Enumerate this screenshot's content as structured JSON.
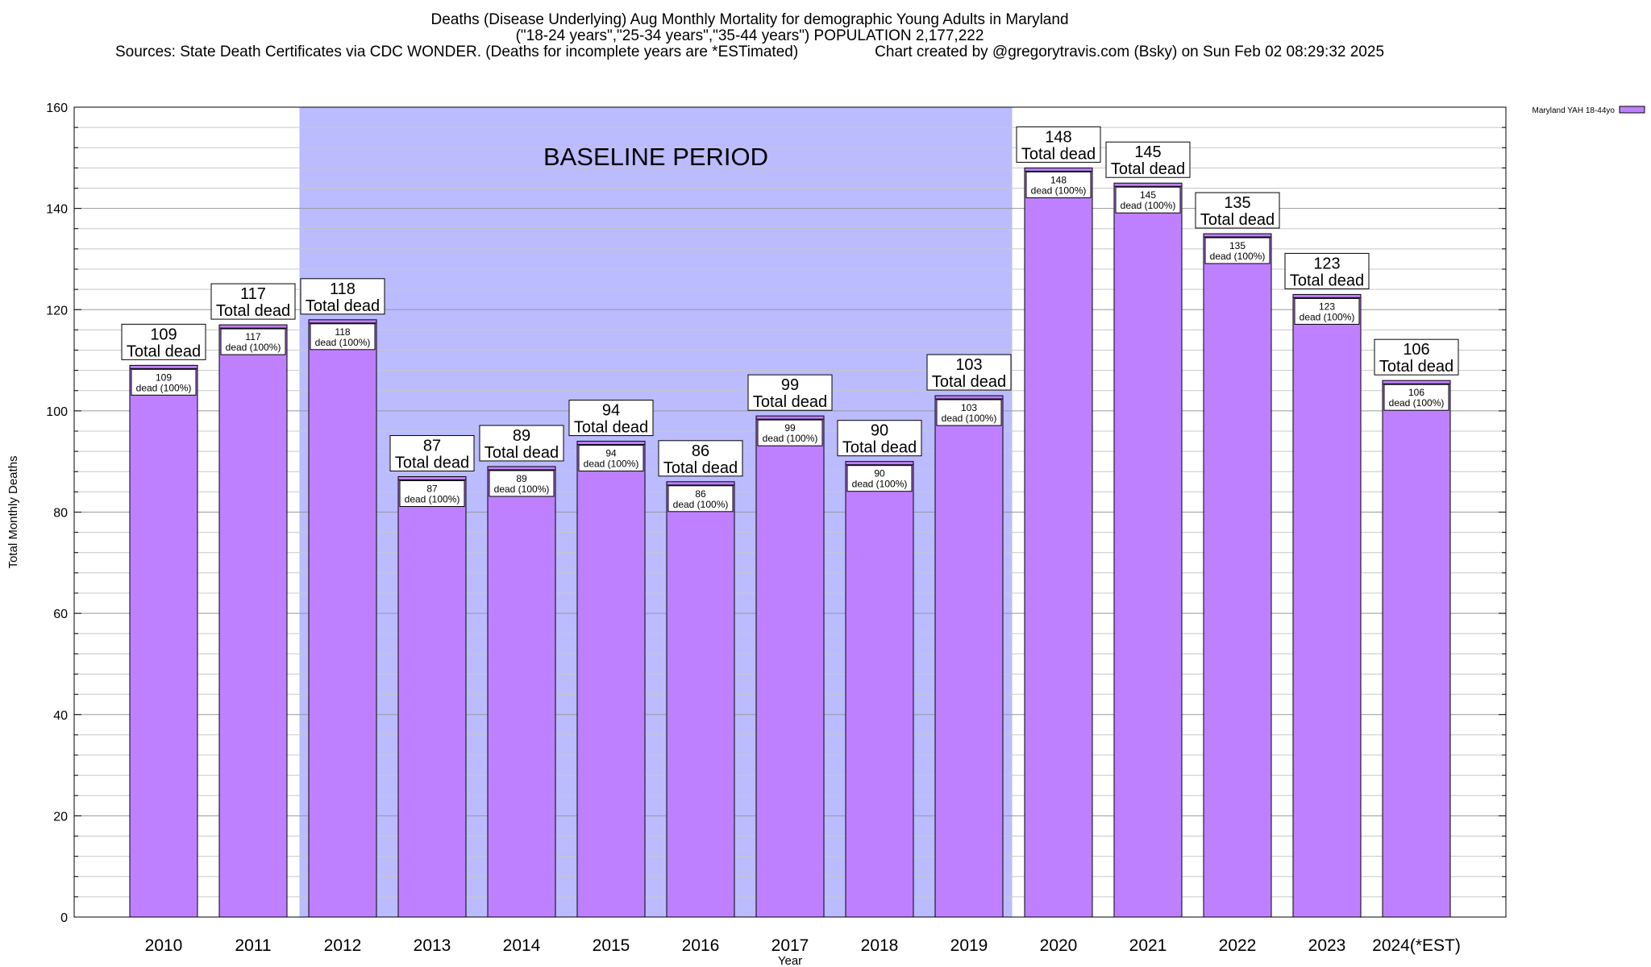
{
  "header": {
    "line1": "Deaths (Disease Underlying) Aug Monthly Mortality for demographic Young Adults in Maryland",
    "line2": "(\"18-24 years\",\"25-34 years\",\"35-44 years\") POPULATION 2,177,222",
    "sources": "Sources: State Death Certificates via CDC WONDER. (Deaths for incomplete years are *ESTimated)",
    "credit": "Chart created by @gregorytravis.com (Bsky) on Sun Feb 02 08:29:32 2025"
  },
  "chart_data": {
    "type": "bar",
    "title": "Deaths (Disease Underlying) Aug Monthly Mortality for demographic Young Adults in Maryland",
    "xlabel": "Year",
    "ylabel": "Total Monthly Deaths",
    "ylim": [
      0,
      160
    ],
    "yticks": [
      0,
      20,
      40,
      60,
      80,
      100,
      120,
      140,
      160
    ],
    "grid": true,
    "legend_position": "top-right",
    "categories": [
      "2010",
      "2011",
      "2012",
      "2013",
      "2014",
      "2015",
      "2016",
      "2017",
      "2018",
      "2019",
      "2020",
      "2021",
      "2022",
      "2023",
      "2024(*EST)"
    ],
    "series": [
      {
        "name": "Maryland YAH 18-44yo",
        "color": "#bf80ff",
        "values": [
          109,
          117,
          118,
          87,
          89,
          94,
          86,
          99,
          90,
          103,
          148,
          145,
          135,
          123,
          106
        ]
      }
    ],
    "total_label_suffix": "Total dead",
    "inner_label_suffix": "dead (100%)",
    "baseline_period": {
      "label": "BASELINE PERIOD",
      "start": "2012",
      "end": "2019",
      "color": "#bbbbff"
    },
    "colors": {
      "bar": "#bf80ff",
      "bar_top": "#9966cc",
      "baseline": "#bbbbff",
      "grid": "#b0b0b0"
    }
  }
}
